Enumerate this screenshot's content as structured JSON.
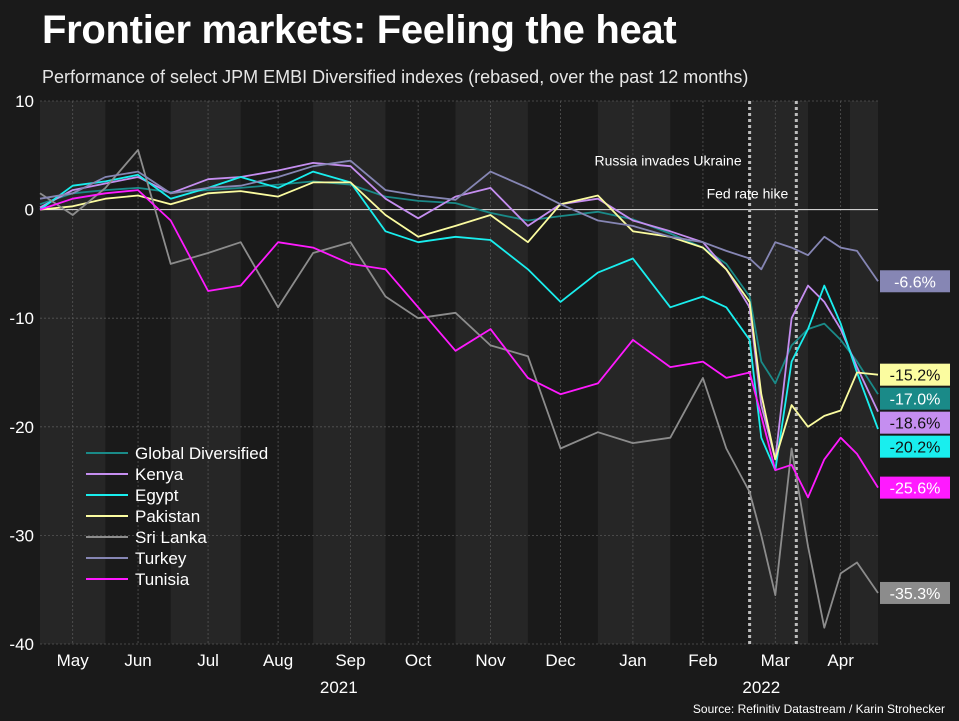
{
  "header": {
    "title": "Frontier markets: Feeling the heat",
    "subtitle": "Performance of select JPM EMBI Diversified indexes (rebased, over the past 12 months)"
  },
  "source": "Source: Refinitiv Datastream / Karin Strohecker",
  "chart_data": {
    "type": "line",
    "title": "Frontier markets: Feeling the heat",
    "subtitle": "Performance of select JPM EMBI Diversified indexes (rebased, over the past 12 months)",
    "x_range": [
      "2021-04-26",
      "2022-04-20"
    ],
    "ylim": [
      -40,
      10
    ],
    "y_ticks": [
      10,
      0,
      -10,
      -20,
      -30,
      -40
    ],
    "x_ticks": [
      {
        "label": "May",
        "date": "2021-05-10"
      },
      {
        "label": "Jun",
        "date": "2021-06-07"
      },
      {
        "label": "Jul",
        "date": "2021-07-07"
      },
      {
        "label": "Aug",
        "date": "2021-08-06"
      },
      {
        "label": "Sep",
        "date": "2021-09-06"
      },
      {
        "label": "Oct",
        "date": "2021-10-05"
      },
      {
        "label": "Nov",
        "date": "2021-11-05"
      },
      {
        "label": "Dec",
        "date": "2021-12-05"
      },
      {
        "label": "Jan",
        "date": "2022-01-05"
      },
      {
        "label": "Feb",
        "date": "2022-02-04"
      },
      {
        "label": "Mar",
        "date": "2022-03-07"
      },
      {
        "label": "Apr",
        "date": "2022-04-04"
      }
    ],
    "year_labels": [
      {
        "label": "2021",
        "date": "2021-09-01"
      },
      {
        "label": "2022",
        "date": "2022-03-01"
      }
    ],
    "shaded_bands": [
      [
        "2021-04-26",
        "2021-05-24"
      ],
      [
        "2021-06-21",
        "2021-07-21"
      ],
      [
        "2021-08-21",
        "2021-09-21"
      ],
      [
        "2021-10-21",
        "2021-11-21"
      ],
      [
        "2021-12-21",
        "2022-01-21"
      ],
      [
        "2022-02-24",
        "2022-03-21"
      ],
      [
        "2022-04-08",
        "2022-04-20"
      ]
    ],
    "grid": true,
    "zero_line": true,
    "annotations": [
      {
        "text": "Russia invades Ukraine",
        "date": "2022-02-24",
        "y": 4.5
      },
      {
        "text": "Fed rate hike",
        "date": "2022-03-16",
        "y": 1.5
      }
    ],
    "legend_position": "bottom-left",
    "series": [
      {
        "name": "Global Diversified",
        "color": "#1a8a88",
        "end_label": "-17.0%",
        "points": [
          [
            "2021-04-26",
            0.5
          ],
          [
            "2021-05-10",
            1.5
          ],
          [
            "2021-05-24",
            1.8
          ],
          [
            "2021-06-07",
            2.0
          ],
          [
            "2021-06-21",
            1.6
          ],
          [
            "2021-07-07",
            1.8
          ],
          [
            "2021-07-21",
            2.0
          ],
          [
            "2021-08-06",
            2.3
          ],
          [
            "2021-08-21",
            2.6
          ],
          [
            "2021-09-06",
            2.3
          ],
          [
            "2021-09-21",
            1.2
          ],
          [
            "2021-10-05",
            0.8
          ],
          [
            "2021-10-21",
            0.6
          ],
          [
            "2021-11-05",
            -0.3
          ],
          [
            "2021-11-21",
            -1.0
          ],
          [
            "2021-12-05",
            -0.6
          ],
          [
            "2021-12-21",
            -0.2
          ],
          [
            "2022-01-05",
            -0.9
          ],
          [
            "2022-01-21",
            -2.2
          ],
          [
            "2022-02-04",
            -3.5
          ],
          [
            "2022-02-14",
            -5.0
          ],
          [
            "2022-02-24",
            -8.0
          ],
          [
            "2022-03-01",
            -14.0
          ],
          [
            "2022-03-07",
            -16.0
          ],
          [
            "2022-03-14",
            -12.5
          ],
          [
            "2022-03-21",
            -11.0
          ],
          [
            "2022-03-28",
            -10.5
          ],
          [
            "2022-04-04",
            -12.0
          ],
          [
            "2022-04-11",
            -14.0
          ],
          [
            "2022-04-20",
            -17.0
          ]
        ]
      },
      {
        "name": "Kenya",
        "color": "#c58ef0",
        "end_label": "-18.6%",
        "points": [
          [
            "2021-04-26",
            0.2
          ],
          [
            "2021-05-10",
            1.8
          ],
          [
            "2021-05-24",
            2.4
          ],
          [
            "2021-06-07",
            3.0
          ],
          [
            "2021-06-21",
            1.5
          ],
          [
            "2021-07-07",
            2.8
          ],
          [
            "2021-07-21",
            3.0
          ],
          [
            "2021-08-06",
            3.6
          ],
          [
            "2021-08-21",
            4.3
          ],
          [
            "2021-09-06",
            4.0
          ],
          [
            "2021-09-21",
            1.0
          ],
          [
            "2021-10-05",
            -0.8
          ],
          [
            "2021-10-21",
            1.2
          ],
          [
            "2021-11-05",
            2.0
          ],
          [
            "2021-11-21",
            -1.5
          ],
          [
            "2021-12-05",
            0.5
          ],
          [
            "2021-12-21",
            1.0
          ],
          [
            "2022-01-05",
            -1.0
          ],
          [
            "2022-01-21",
            -2.0
          ],
          [
            "2022-02-04",
            -3.0
          ],
          [
            "2022-02-14",
            -5.5
          ],
          [
            "2022-02-24",
            -9.0
          ],
          [
            "2022-03-01",
            -18.0
          ],
          [
            "2022-03-07",
            -23.0
          ],
          [
            "2022-03-14",
            -10.0
          ],
          [
            "2022-03-21",
            -7.0
          ],
          [
            "2022-03-28",
            -8.5
          ],
          [
            "2022-04-04",
            -11.0
          ],
          [
            "2022-04-11",
            -14.5
          ],
          [
            "2022-04-20",
            -18.6
          ]
        ]
      },
      {
        "name": "Egypt",
        "color": "#19eeee",
        "end_label": "-20.2%",
        "points": [
          [
            "2021-04-26",
            0.0
          ],
          [
            "2021-05-10",
            2.2
          ],
          [
            "2021-05-24",
            2.6
          ],
          [
            "2021-06-07",
            3.2
          ],
          [
            "2021-06-21",
            1.0
          ],
          [
            "2021-07-07",
            2.0
          ],
          [
            "2021-07-21",
            3.0
          ],
          [
            "2021-08-06",
            2.0
          ],
          [
            "2021-08-21",
            3.5
          ],
          [
            "2021-09-06",
            2.5
          ],
          [
            "2021-09-21",
            -2.0
          ],
          [
            "2021-10-05",
            -3.0
          ],
          [
            "2021-10-21",
            -2.5
          ],
          [
            "2021-11-05",
            -2.8
          ],
          [
            "2021-11-21",
            -5.5
          ],
          [
            "2021-12-05",
            -8.5
          ],
          [
            "2021-12-21",
            -5.8
          ],
          [
            "2022-01-05",
            -4.5
          ],
          [
            "2022-01-21",
            -9.0
          ],
          [
            "2022-02-04",
            -8.0
          ],
          [
            "2022-02-14",
            -9.0
          ],
          [
            "2022-02-24",
            -12.0
          ],
          [
            "2022-03-01",
            -21.0
          ],
          [
            "2022-03-07",
            -24.0
          ],
          [
            "2022-03-14",
            -14.0
          ],
          [
            "2022-03-21",
            -11.0
          ],
          [
            "2022-03-28",
            -7.0
          ],
          [
            "2022-04-04",
            -10.5
          ],
          [
            "2022-04-11",
            -15.0
          ],
          [
            "2022-04-20",
            -20.2
          ]
        ]
      },
      {
        "name": "Pakistan",
        "color": "#fbfca0",
        "end_label": "-15.2%",
        "points": [
          [
            "2021-04-26",
            0.0
          ],
          [
            "2021-05-10",
            0.3
          ],
          [
            "2021-05-24",
            1.0
          ],
          [
            "2021-06-07",
            1.3
          ],
          [
            "2021-06-21",
            0.5
          ],
          [
            "2021-07-07",
            1.5
          ],
          [
            "2021-07-21",
            1.7
          ],
          [
            "2021-08-06",
            1.2
          ],
          [
            "2021-08-21",
            2.5
          ],
          [
            "2021-09-06",
            2.5
          ],
          [
            "2021-09-21",
            -0.5
          ],
          [
            "2021-10-05",
            -2.5
          ],
          [
            "2021-10-21",
            -1.5
          ],
          [
            "2021-11-05",
            -0.5
          ],
          [
            "2021-11-21",
            -3.0
          ],
          [
            "2021-12-05",
            0.5
          ],
          [
            "2021-12-21",
            1.3
          ],
          [
            "2022-01-05",
            -2.0
          ],
          [
            "2022-01-21",
            -2.5
          ],
          [
            "2022-02-04",
            -3.5
          ],
          [
            "2022-02-14",
            -5.5
          ],
          [
            "2022-02-24",
            -8.5
          ],
          [
            "2022-03-01",
            -17.0
          ],
          [
            "2022-03-07",
            -23.0
          ],
          [
            "2022-03-14",
            -18.0
          ],
          [
            "2022-03-21",
            -20.0
          ],
          [
            "2022-03-28",
            -19.0
          ],
          [
            "2022-04-04",
            -18.5
          ],
          [
            "2022-04-11",
            -15.0
          ],
          [
            "2022-04-20",
            -15.2
          ]
        ]
      },
      {
        "name": "Sri Lanka",
        "color": "#8c8c8c",
        "end_label": "-35.3%",
        "points": [
          [
            "2021-04-26",
            1.5
          ],
          [
            "2021-05-10",
            -0.5
          ],
          [
            "2021-05-24",
            2.0
          ],
          [
            "2021-06-07",
            5.5
          ],
          [
            "2021-06-21",
            -5.0
          ],
          [
            "2021-07-07",
            -4.0
          ],
          [
            "2021-07-21",
            -3.0
          ],
          [
            "2021-08-06",
            -9.0
          ],
          [
            "2021-08-21",
            -4.0
          ],
          [
            "2021-09-06",
            -3.0
          ],
          [
            "2021-09-21",
            -8.0
          ],
          [
            "2021-10-05",
            -10.0
          ],
          [
            "2021-10-21",
            -9.5
          ],
          [
            "2021-11-05",
            -12.5
          ],
          [
            "2021-11-21",
            -13.5
          ],
          [
            "2021-12-05",
            -22.0
          ],
          [
            "2021-12-21",
            -20.5
          ],
          [
            "2022-01-05",
            -21.5
          ],
          [
            "2022-01-21",
            -21.0
          ],
          [
            "2022-02-04",
            -15.5
          ],
          [
            "2022-02-14",
            -22.0
          ],
          [
            "2022-02-24",
            -26.0
          ],
          [
            "2022-03-01",
            -30.0
          ],
          [
            "2022-03-07",
            -35.5
          ],
          [
            "2022-03-14",
            -22.0
          ],
          [
            "2022-03-21",
            -31.0
          ],
          [
            "2022-03-28",
            -38.5
          ],
          [
            "2022-04-04",
            -33.5
          ],
          [
            "2022-04-11",
            -32.5
          ],
          [
            "2022-04-20",
            -35.3
          ]
        ]
      },
      {
        "name": "Turkey",
        "color": "#8686b4",
        "end_label": "-6.6%",
        "points": [
          [
            "2021-04-26",
            1.0
          ],
          [
            "2021-05-10",
            1.5
          ],
          [
            "2021-05-24",
            3.0
          ],
          [
            "2021-06-07",
            3.5
          ],
          [
            "2021-06-21",
            1.5
          ],
          [
            "2021-07-07",
            2.0
          ],
          [
            "2021-07-21",
            2.2
          ],
          [
            "2021-08-06",
            3.0
          ],
          [
            "2021-08-21",
            4.0
          ],
          [
            "2021-09-06",
            4.5
          ],
          [
            "2021-09-21",
            1.8
          ],
          [
            "2021-10-05",
            1.3
          ],
          [
            "2021-10-21",
            0.9
          ],
          [
            "2021-11-05",
            3.5
          ],
          [
            "2021-11-21",
            2.0
          ],
          [
            "2021-12-05",
            0.5
          ],
          [
            "2021-12-21",
            -1.0
          ],
          [
            "2022-01-05",
            -1.5
          ],
          [
            "2022-01-21",
            -2.5
          ],
          [
            "2022-02-04",
            -3.0
          ],
          [
            "2022-02-14",
            -3.8
          ],
          [
            "2022-02-24",
            -4.5
          ],
          [
            "2022-03-01",
            -5.5
          ],
          [
            "2022-03-07",
            -3.0
          ],
          [
            "2022-03-14",
            -3.5
          ],
          [
            "2022-03-21",
            -4.2
          ],
          [
            "2022-03-28",
            -2.5
          ],
          [
            "2022-04-04",
            -3.5
          ],
          [
            "2022-04-11",
            -3.8
          ],
          [
            "2022-04-20",
            -6.6
          ]
        ]
      },
      {
        "name": "Tunisia",
        "color": "#ff1aff",
        "end_label": "-25.6%",
        "points": [
          [
            "2021-04-26",
            0.0
          ],
          [
            "2021-05-10",
            1.0
          ],
          [
            "2021-05-24",
            1.5
          ],
          [
            "2021-06-07",
            1.8
          ],
          [
            "2021-06-21",
            -1.0
          ],
          [
            "2021-07-07",
            -7.5
          ],
          [
            "2021-07-21",
            -7.0
          ],
          [
            "2021-08-06",
            -3.0
          ],
          [
            "2021-08-21",
            -3.5
          ],
          [
            "2021-09-06",
            -5.0
          ],
          [
            "2021-09-21",
            -5.5
          ],
          [
            "2021-10-05",
            -9.0
          ],
          [
            "2021-10-21",
            -13.0
          ],
          [
            "2021-11-05",
            -11.0
          ],
          [
            "2021-11-21",
            -15.5
          ],
          [
            "2021-12-05",
            -17.0
          ],
          [
            "2021-12-21",
            -16.0
          ],
          [
            "2022-01-05",
            -12.0
          ],
          [
            "2022-01-21",
            -14.5
          ],
          [
            "2022-02-04",
            -14.0
          ],
          [
            "2022-02-14",
            -15.5
          ],
          [
            "2022-02-24",
            -15.0
          ],
          [
            "2022-03-01",
            -19.0
          ],
          [
            "2022-03-07",
            -24.0
          ],
          [
            "2022-03-14",
            -23.5
          ],
          [
            "2022-03-21",
            -26.5
          ],
          [
            "2022-03-28",
            -23.0
          ],
          [
            "2022-04-04",
            -21.0
          ],
          [
            "2022-04-11",
            -22.5
          ],
          [
            "2022-04-20",
            -25.6
          ]
        ]
      }
    ]
  }
}
